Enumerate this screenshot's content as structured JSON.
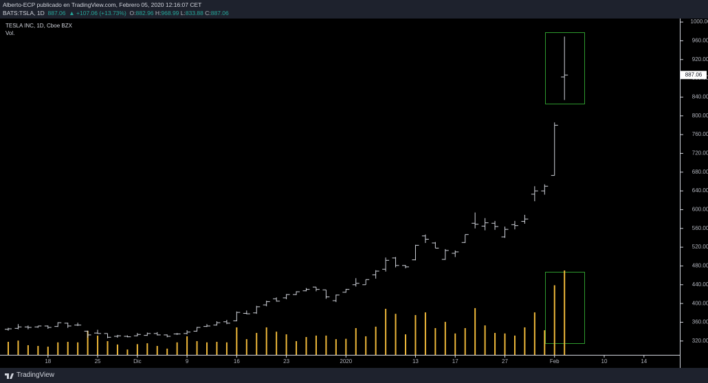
{
  "header": {
    "publisher": "Alberto-ECP publicado en TradingView.com, Febrero 05, 2020 12:16:07 CET",
    "symbol": "BATS:TSLA, 1D",
    "last": "887.06",
    "change": "▲ +107.06 (+13.73%)",
    "ohlc": [
      {
        "label": "O:",
        "value": "882.96"
      },
      {
        "label": "H:",
        "value": "968.99"
      },
      {
        "label": "L:",
        "value": "833.88"
      },
      {
        "label": "C:",
        "value": "887.06"
      }
    ]
  },
  "footer": {
    "brand": "TradingView"
  },
  "chart_data": {
    "type": "ohlc",
    "title": "TESLA INC, 1D, Cboe BZX",
    "volume_name": "Vol.",
    "bar_color": "#d1d4dc",
    "volume_color": "#f0b93a",
    "categories": [
      null,
      null,
      null,
      null,
      "18",
      null,
      null,
      null,
      null,
      "25",
      null,
      null,
      null,
      "Dic",
      null,
      null,
      null,
      null,
      "9",
      null,
      null,
      null,
      null,
      "16",
      null,
      null,
      null,
      null,
      "23",
      null,
      null,
      null,
      null,
      null,
      "2020",
      null,
      null,
      null,
      null,
      null,
      null,
      "13",
      null,
      null,
      null,
      "17",
      null,
      null,
      null,
      null,
      "27",
      null,
      null,
      null,
      null,
      "Feb",
      null,
      null,
      null,
      null,
      "10",
      null,
      null,
      null,
      "14"
    ],
    "open": [
      345,
      347,
      350,
      350,
      352,
      351,
      358,
      354,
      341,
      337,
      336,
      330,
      330,
      331,
      332,
      336,
      333,
      335,
      336,
      341,
      351,
      354,
      361,
      363,
      379,
      380,
      397,
      410,
      412,
      419,
      427,
      435,
      429,
      406,
      424,
      440,
      440,
      461,
      473,
      497,
      481,
      493,
      544,
      529,
      494,
      507,
      530,
      571,
      565,
      571,
      542,
      568,
      575,
      633,
      640,
      673,
      882.96,
      null,
      null,
      null,
      null,
      null,
      null,
      null,
      null
    ],
    "high": [
      348,
      356,
      353,
      352,
      353,
      360,
      359,
      359,
      342,
      344,
      336,
      333,
      332,
      337,
      338,
      339,
      334,
      337,
      343,
      350,
      356,
      362,
      365,
      383,
      385,
      395,
      406,
      413,
      420,
      426,
      433,
      435,
      429,
      419,
      431,
      454,
      451,
      471,
      498,
      499,
      482,
      525,
      547,
      531,
      516,
      513,
      547,
      594,
      582,
      576,
      564,
      576,
      589,
      650,
      654,
      786,
      968.99,
      null,
      null,
      null,
      null,
      null,
      null,
      null,
      null
    ],
    "low": [
      342,
      345,
      345,
      348,
      346,
      350,
      348,
      352,
      327,
      335,
      326,
      327,
      328,
      330,
      331,
      332,
      328,
      333,
      334,
      340,
      350,
      353,
      356,
      362,
      377,
      378,
      394,
      404,
      409,
      418,
      426,
      426,
      410,
      403,
      423,
      436,
      440,
      453,
      468,
      477,
      475,
      492,
      529,
      518,
      493,
      499,
      529,
      560,
      556,
      557,
      540,
      558,
      570,
      618,
      632,
      673,
      833.88,
      null,
      null,
      null,
      null,
      null,
      null,
      null,
      null
    ],
    "close": [
      346,
      350,
      349,
      352,
      349,
      359,
      352,
      354,
      333,
      336,
      328,
      331,
      329,
      334,
      336,
      333,
      330,
      335,
      339,
      349,
      352,
      359,
      358,
      381,
      378,
      393,
      404,
      405,
      419,
      425,
      430,
      430,
      414,
      418,
      430,
      443,
      451,
      469,
      492,
      481,
      478,
      524,
      537,
      518,
      513,
      510,
      547,
      569,
      572,
      564,
      558,
      566,
      580,
      640,
      650,
      780,
      887.06,
      null,
      null,
      null,
      null,
      null,
      null,
      null,
      null
    ],
    "volume": [
      7.3,
      8,
      5.4,
      5,
      4.6,
      7,
      7.3,
      7,
      13.5,
      10.8,
      7.7,
      5.8,
      3,
      6,
      6.5,
      5,
      3.5,
      7,
      10.4,
      7.7,
      7,
      7.3,
      7,
      15.4,
      8.8,
      12.3,
      15.4,
      13,
      11.5,
      7.7,
      10,
      10.8,
      10.8,
      8.8,
      9,
      15,
      10.4,
      15.8,
      25.8,
      23,
      11.5,
      22.3,
      23.8,
      15,
      18.5,
      12,
      15,
      26.2,
      16.5,
      12.3,
      12,
      10.8,
      15.4,
      23.8,
      13.8,
      39,
      47.3,
      null,
      null,
      null,
      null,
      null,
      null,
      null,
      null
    ],
    "ylim": [
      289,
      1006
    ],
    "yticks": [
      {
        "value": 320,
        "label": "320.00"
      },
      {
        "value": 360,
        "label": "360.00"
      },
      {
        "value": 400,
        "label": "400.00"
      },
      {
        "value": 440,
        "label": "440.00"
      },
      {
        "value": 480,
        "label": "480.00"
      },
      {
        "value": 520,
        "label": "520.00"
      },
      {
        "value": 560,
        "label": "560.00"
      },
      {
        "value": 600,
        "label": "600.00"
      },
      {
        "value": 640,
        "label": "640.00"
      },
      {
        "value": 680,
        "label": "680.00"
      },
      {
        "value": 720,
        "label": "720.00"
      },
      {
        "value": 760,
        "label": "760.00"
      },
      {
        "value": 800,
        "label": "800.00"
      },
      {
        "value": 840,
        "label": "840.00"
      },
      {
        "value": 880,
        "label": "880.00"
      },
      {
        "value": 920,
        "label": "920.00"
      },
      {
        "value": 960,
        "label": "960.00"
      },
      {
        "value": 1000,
        "label": "1000.00"
      }
    ]
  }
}
